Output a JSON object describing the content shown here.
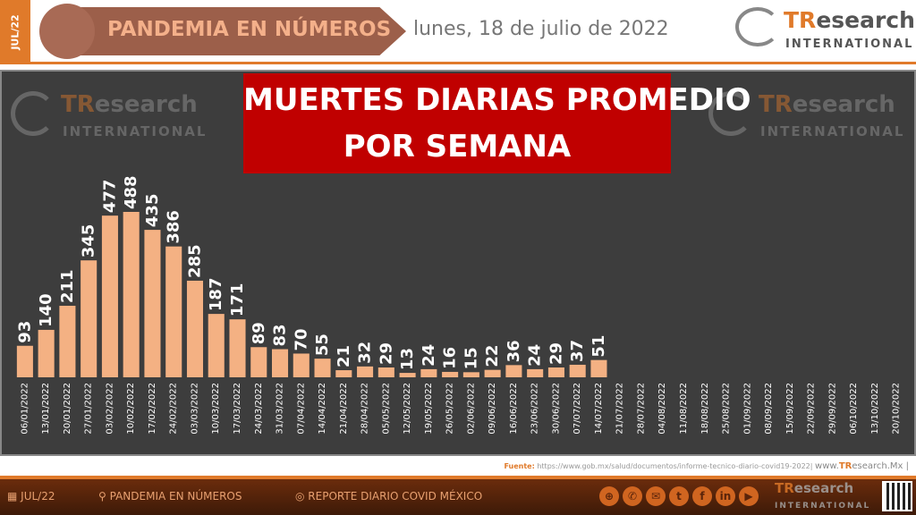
{
  "header": {
    "month_tag": "JUL/22",
    "banner": "PANDEMIA EN NÚMEROS",
    "date": "lunes, 18 de julio de 2022"
  },
  "logo": {
    "tr": "TR",
    "rest": "esearch",
    "sub": "INTERNATIONAL"
  },
  "chart_data": {
    "type": "bar",
    "title": "MUERTES DIARIAS PROMEDIO POR SEMANA",
    "title_line1": "MUERTES DIARIAS PROMEDIO",
    "title_line2": "POR SEMANA",
    "bar_color": "#f4b183",
    "background": "#3d3d3d",
    "categories": [
      "06/01/2022",
      "13/01/2022",
      "20/01/2022",
      "27/01/2022",
      "03/02/2022",
      "10/02/2022",
      "17/02/2022",
      "24/02/2022",
      "03/03/2022",
      "10/03/2022",
      "17/03/2022",
      "24/03/2022",
      "31/03/2022",
      "07/04/2022",
      "14/04/2022",
      "21/04/2022",
      "28/04/2022",
      "05/05/2022",
      "12/05/2022",
      "19/05/2022",
      "26/05/2022",
      "02/06/2022",
      "09/06/2022",
      "16/06/2022",
      "23/06/2022",
      "30/06/2022",
      "07/07/2022",
      "14/07/2022",
      "21/07/2022",
      "28/07/2022",
      "04/08/2022",
      "11/08/2022",
      "18/08/2022",
      "25/08/2022",
      "01/09/2022",
      "08/09/2022",
      "15/09/2022",
      "22/09/2022",
      "29/09/2022",
      "06/10/2022",
      "13/10/2022",
      "20/10/2022"
    ],
    "values": [
      93,
      140,
      211,
      345,
      477,
      488,
      435,
      386,
      285,
      187,
      171,
      89,
      83,
      70,
      55,
      21,
      32,
      29,
      13,
      24,
      16,
      15,
      22,
      36,
      24,
      29,
      37,
      51,
      null,
      null,
      null,
      null,
      null,
      null,
      null,
      null,
      null,
      null,
      null,
      null,
      null,
      null
    ]
  },
  "source": {
    "label": "Fuente:",
    "url": "https://www.gob.mx/salud/documentos/informe-tecnico-diario-covid19-2022|",
    "site_pre": "www.",
    "site_tr": "TR",
    "site_rest": "esearch.Mx |"
  },
  "footer": {
    "month": "JUL/22",
    "section": "PANDEMIA EN NÚMEROS",
    "report": "REPORTE DIARIO COVID MÉXICO"
  }
}
